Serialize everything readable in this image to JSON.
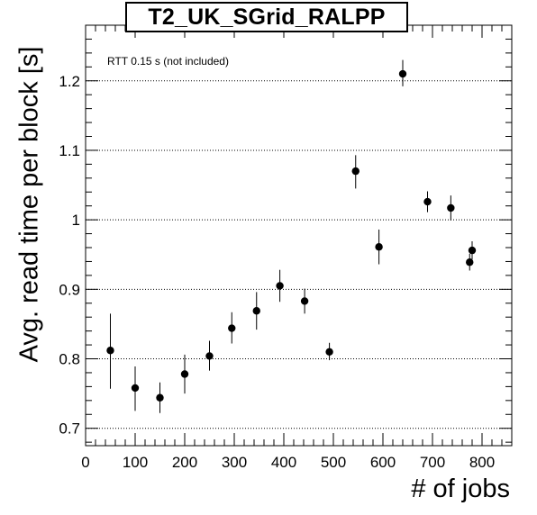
{
  "chart_data": {
    "type": "scatter",
    "title": "T2_UK_SGrid_RALPP",
    "annotation": "RTT 0.15 s (not included)",
    "xlabel": "# of jobs",
    "ylabel": "Avg. read time per block [s]",
    "xlim": [
      0,
      860
    ],
    "ylim": [
      0.675,
      1.28
    ],
    "x_ticks": [
      "0",
      "100",
      "200",
      "300",
      "400",
      "500",
      "600",
      "700",
      "800"
    ],
    "y_ticks": [
      "0.7",
      "0.8",
      "0.9",
      "1",
      "1.1",
      "1.2"
    ],
    "grid": "horizontal-dotted",
    "series": [
      {
        "points": [
          {
            "x": 50,
            "y": 0.812,
            "err_low": 0.055,
            "err_high": 0.053
          },
          {
            "x": 100,
            "y": 0.758,
            "err_low": 0.033,
            "err_high": 0.031
          },
          {
            "x": 150,
            "y": 0.744,
            "err_low": 0.022,
            "err_high": 0.022
          },
          {
            "x": 200,
            "y": 0.778,
            "err_low": 0.028,
            "err_high": 0.028
          },
          {
            "x": 250,
            "y": 0.804,
            "err_low": 0.021,
            "err_high": 0.022
          },
          {
            "x": 295,
            "y": 0.844,
            "err_low": 0.022,
            "err_high": 0.023
          },
          {
            "x": 345,
            "y": 0.869,
            "err_low": 0.027,
            "err_high": 0.027
          },
          {
            "x": 392,
            "y": 0.905,
            "err_low": 0.023,
            "err_high": 0.023
          },
          {
            "x": 442,
            "y": 0.883,
            "err_low": 0.018,
            "err_high": 0.018
          },
          {
            "x": 492,
            "y": 0.81,
            "err_low": 0.012,
            "err_high": 0.013
          },
          {
            "x": 545,
            "y": 1.07,
            "err_low": 0.025,
            "err_high": 0.023
          },
          {
            "x": 592,
            "y": 0.961,
            "err_low": 0.025,
            "err_high": 0.025
          },
          {
            "x": 640,
            "y": 1.21,
            "err_low": 0.018,
            "err_high": 0.02
          },
          {
            "x": 690,
            "y": 1.026,
            "err_low": 0.015,
            "err_high": 0.015
          },
          {
            "x": 737,
            "y": 1.017,
            "err_low": 0.018,
            "err_high": 0.018
          },
          {
            "x": 775,
            "y": 0.939,
            "err_low": 0.012,
            "err_high": 0.012
          },
          {
            "x": 780,
            "y": 0.956,
            "err_low": 0.013,
            "err_high": 0.013
          }
        ]
      }
    ]
  }
}
